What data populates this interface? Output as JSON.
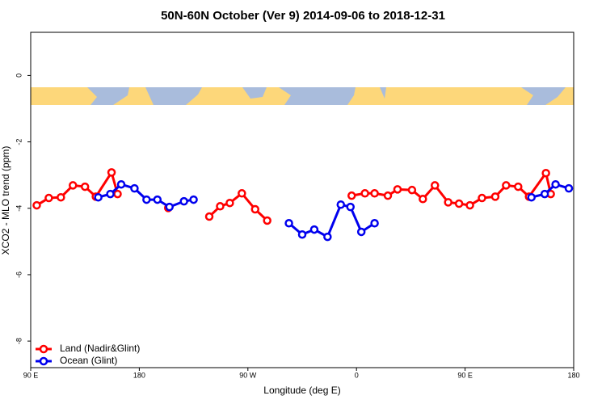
{
  "chart_data": {
    "type": "line",
    "title": "50N-60N October (Ver 9)   2014-09-06 to 2018-12-31",
    "x_label": "Longitude (deg E)",
    "y_label": "XCO2 - MLO trend (ppm)",
    "xlim": [
      90,
      540
    ],
    "xticks": [
      {
        "value": 90,
        "label": "90 E"
      },
      180,
      {
        "value": 270,
        "label": "90 W"
      },
      {
        "value": 360,
        "label": "0"
      },
      {
        "value": 450,
        "label": "90 E"
      },
      {
        "value": 540,
        "label": "180"
      }
    ],
    "ylim": [
      -8.8,
      1.3
    ],
    "yticks": [
      0,
      -2,
      -4,
      -6,
      -8
    ],
    "legend": "bottom-left",
    "series": [
      {
        "name": "Land (Nadir&Glint)",
        "color": "#ff0000",
        "x": [
          95,
          105,
          115,
          125,
          135,
          144,
          157,
          162,
          null,
          204,
          null,
          238,
          247,
          255,
          265,
          276,
          286,
          null,
          356,
          367,
          375,
          386,
          394,
          406,
          415,
          425,
          436,
          445,
          454,
          464,
          475,
          484,
          494,
          503,
          517,
          521
        ],
        "values": [
          -3.91,
          -3.69,
          -3.67,
          -3.31,
          -3.35,
          -3.65,
          -2.92,
          -3.57,
          null,
          -3.99,
          null,
          -4.25,
          -3.94,
          -3.84,
          -3.55,
          -4.03,
          -4.37,
          null,
          -3.62,
          -3.55,
          -3.55,
          -3.62,
          -3.43,
          -3.45,
          -3.72,
          -3.31,
          -3.82,
          -3.86,
          -3.91,
          -3.69,
          -3.65,
          -3.31,
          -3.35,
          -3.65,
          -2.94,
          -3.57
        ]
      },
      {
        "name": "Ocean (Glint)",
        "color": "#0000ee",
        "x": [
          146,
          156,
          165,
          176,
          186,
          195,
          205,
          217,
          225,
          null,
          304,
          315,
          325,
          336,
          347,
          355,
          364,
          375,
          null,
          505,
          516,
          525,
          536
        ],
        "values": [
          -3.67,
          -3.57,
          -3.28,
          -3.4,
          -3.74,
          -3.74,
          -3.96,
          -3.79,
          -3.74,
          null,
          -4.45,
          -4.79,
          -4.64,
          -4.86,
          -3.89,
          -3.96,
          -4.71,
          -4.45,
          null,
          -3.67,
          -3.57,
          -3.28,
          -3.4
        ]
      }
    ]
  }
}
